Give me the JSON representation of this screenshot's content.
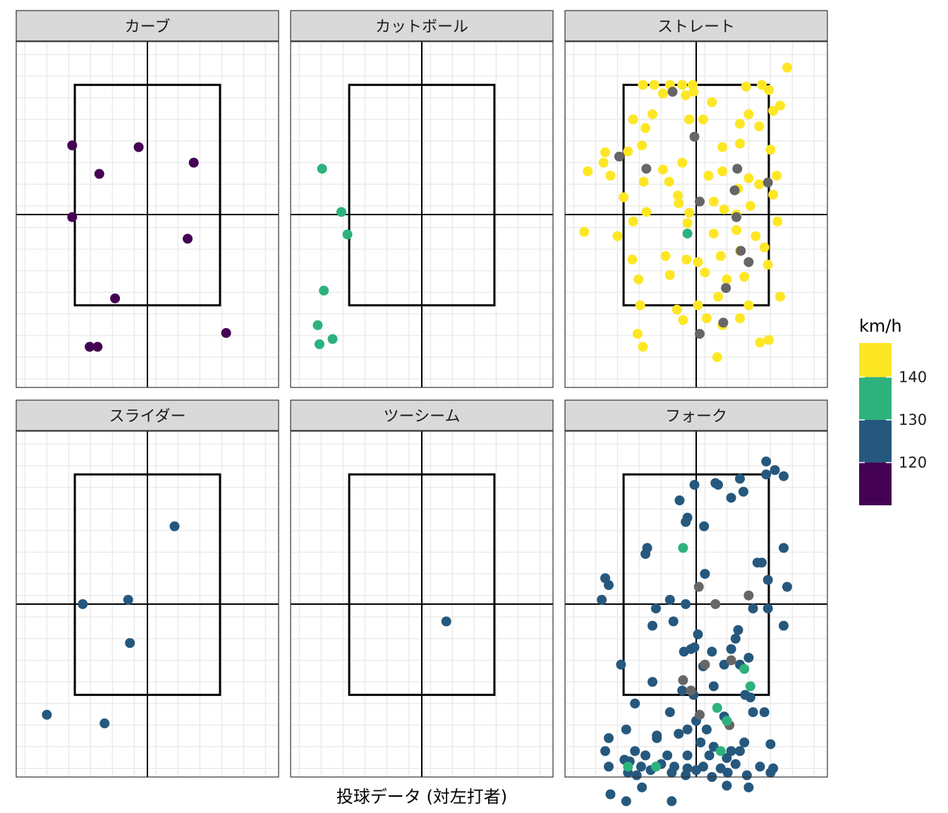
{
  "chart_data": {
    "type": "scatter",
    "facets_layout": "2x3",
    "xlabel": "投球データ (対左打者)",
    "ylabel": "",
    "xlim": [
      -1.5,
      1.5
    ],
    "ylim": [
      0,
      4
    ],
    "strike_zone": {
      "x": [
        -0.83,
        0.83
      ],
      "y": [
        0.95,
        3.5
      ]
    },
    "center_lines": {
      "x": 0,
      "y": 2.0
    },
    "grid": true,
    "legend": {
      "title": "km/h",
      "placement": "right",
      "ticks": [
        "120",
        "130",
        "140"
      ],
      "tick_values": [
        120,
        130,
        140
      ],
      "bands": [
        {
          "from": 140,
          "to": 148,
          "color": "#FDE725"
        },
        {
          "from": 130,
          "to": 140,
          "color": "#2DB27D"
        },
        {
          "from": 120,
          "to": 130,
          "color": "#26587E"
        },
        {
          "from": 110,
          "to": 120,
          "color": "#440154"
        }
      ],
      "range": [
        110,
        148
      ]
    },
    "na_color": "#666666",
    "facets": [
      {
        "name": "カーブ",
        "color": "#440154",
        "points": [
          [
            -0.86,
            2.8
          ],
          [
            -0.1,
            2.78
          ],
          [
            -0.55,
            2.47
          ],
          [
            0.53,
            2.6
          ],
          [
            -0.86,
            1.97
          ],
          [
            0.46,
            1.72
          ],
          [
            -0.37,
            1.03
          ],
          [
            -0.66,
            0.47
          ],
          [
            -0.57,
            0.47
          ],
          [
            0.9,
            0.63
          ]
        ]
      },
      {
        "name": "カットボール",
        "color": "#2DB27D",
        "points": [
          [
            -1.14,
            2.53
          ],
          [
            -0.92,
            2.03
          ],
          [
            -0.85,
            1.77
          ],
          [
            -1.12,
            1.12
          ],
          [
            -1.19,
            0.72
          ],
          [
            -1.17,
            0.5
          ],
          [
            -1.02,
            0.56
          ]
        ]
      },
      {
        "name": "ストレート",
        "color": "#FDE725",
        "points": [
          [
            1.04,
            3.7
          ],
          [
            -0.61,
            3.5
          ],
          [
            -0.48,
            3.5
          ],
          [
            -0.3,
            3.5
          ],
          [
            -0.16,
            3.5
          ],
          [
            -0.04,
            3.5
          ],
          [
            0.57,
            3.48
          ],
          [
            0.75,
            3.5
          ],
          [
            0.83,
            3.44
          ],
          [
            -0.38,
            3.4
          ],
          [
            -0.12,
            3.38
          ],
          [
            -0.03,
            3.42
          ],
          [
            0.18,
            3.3
          ],
          [
            0.96,
            3.26
          ],
          [
            0.88,
            3.2
          ],
          [
            0.6,
            3.16
          ],
          [
            -0.72,
            3.1
          ],
          [
            -0.58,
            3.0
          ],
          [
            -0.5,
            3.16
          ],
          [
            -0.08,
            3.1
          ],
          [
            0.08,
            3.1
          ],
          [
            0.5,
            3.05
          ],
          [
            0.72,
            3.02
          ],
          [
            -1.04,
            2.72
          ],
          [
            -1.06,
            2.6
          ],
          [
            -0.78,
            2.73
          ],
          [
            -0.62,
            2.8
          ],
          [
            -0.38,
            2.52
          ],
          [
            -0.16,
            2.6
          ],
          [
            0.3,
            2.78
          ],
          [
            0.5,
            2.82
          ],
          [
            0.85,
            2.75
          ],
          [
            -1.24,
            2.5
          ],
          [
            -0.98,
            2.45
          ],
          [
            -0.6,
            2.38
          ],
          [
            -0.31,
            2.38
          ],
          [
            -0.21,
            2.22
          ],
          [
            0.14,
            2.45
          ],
          [
            0.3,
            2.5
          ],
          [
            0.48,
            2.3
          ],
          [
            0.6,
            2.42
          ],
          [
            0.72,
            2.35
          ],
          [
            0.92,
            2.45
          ],
          [
            -0.83,
            2.2
          ],
          [
            -0.57,
            2.03
          ],
          [
            -0.2,
            2.13
          ],
          [
            -0.08,
            2.02
          ],
          [
            0.2,
            2.15
          ],
          [
            0.32,
            2.06
          ],
          [
            0.46,
            2.0
          ],
          [
            0.62,
            2.1
          ],
          [
            0.88,
            2.23
          ],
          [
            -1.28,
            1.8
          ],
          [
            -0.9,
            1.75
          ],
          [
            -0.72,
            1.92
          ],
          [
            -0.1,
            1.9
          ],
          [
            0.2,
            1.78
          ],
          [
            0.46,
            1.82
          ],
          [
            0.68,
            1.75
          ],
          [
            0.93,
            1.92
          ],
          [
            -0.73,
            1.48
          ],
          [
            -0.35,
            1.52
          ],
          [
            -0.11,
            1.48
          ],
          [
            0.02,
            1.45
          ],
          [
            0.28,
            1.52
          ],
          [
            0.5,
            1.58
          ],
          [
            0.78,
            1.62
          ],
          [
            -0.66,
            1.25
          ],
          [
            -0.3,
            1.3
          ],
          [
            0.1,
            1.33
          ],
          [
            0.35,
            1.25
          ],
          [
            0.55,
            1.28
          ],
          [
            0.82,
            1.42
          ],
          [
            -0.64,
            0.95
          ],
          [
            -0.22,
            0.9
          ],
          [
            0.02,
            0.95
          ],
          [
            0.25,
            1.05
          ],
          [
            0.6,
            0.95
          ],
          [
            0.96,
            1.05
          ],
          [
            -0.67,
            0.62
          ],
          [
            -0.61,
            0.47
          ],
          [
            -0.15,
            0.78
          ],
          [
            0.12,
            0.8
          ],
          [
            0.3,
            0.72
          ],
          [
            0.5,
            0.8
          ],
          [
            0.73,
            0.52
          ],
          [
            0.83,
            0.55
          ],
          [
            0.24,
            0.35
          ]
        ],
        "na_points": [
          [
            -0.27,
            3.42
          ],
          [
            -0.02,
            2.9
          ],
          [
            -0.88,
            2.67
          ],
          [
            -0.57,
            2.53
          ],
          [
            0.47,
            2.53
          ],
          [
            0.82,
            2.37
          ],
          [
            0.44,
            2.28
          ],
          [
            0.04,
            2.15
          ],
          [
            0.46,
            1.97
          ],
          [
            0.51,
            1.58
          ],
          [
            0.6,
            1.45
          ],
          [
            0.34,
            1.15
          ],
          [
            0.31,
            0.75
          ],
          [
            0.04,
            0.62
          ]
        ],
        "green_points": [
          [
            -0.1,
            1.78
          ]
        ]
      },
      {
        "name": "スライダー",
        "color": "#26587E",
        "points": [
          [
            0.31,
            2.9
          ],
          [
            -0.74,
            2.0
          ],
          [
            -0.22,
            2.05
          ],
          [
            -0.2,
            1.55
          ],
          [
            -1.15,
            0.72
          ],
          [
            -0.49,
            0.62
          ]
        ]
      },
      {
        "name": "ツーシーム",
        "color": "#26587E",
        "points": [
          [
            0.28,
            1.8
          ]
        ]
      },
      {
        "name": "フォーク",
        "color": "#26587E",
        "points": [
          [
            0.8,
            3.65
          ],
          [
            0.9,
            3.55
          ],
          [
            1.0,
            3.48
          ],
          [
            0.8,
            3.5
          ],
          [
            0.22,
            3.4
          ],
          [
            0.25,
            3.38
          ],
          [
            0.5,
            3.45
          ],
          [
            -0.19,
            3.2
          ],
          [
            -0.02,
            3.38
          ],
          [
            0.4,
            3.23
          ],
          [
            0.54,
            3.3
          ],
          [
            -0.1,
            3.0
          ],
          [
            -0.12,
            2.95
          ],
          [
            0.09,
            2.9
          ],
          [
            -0.56,
            2.65
          ],
          [
            0.7,
            2.48
          ],
          [
            -0.58,
            2.58
          ],
          [
            1.0,
            2.65
          ],
          [
            0.75,
            2.48
          ],
          [
            0.1,
            2.35
          ],
          [
            0.82,
            2.28
          ],
          [
            1.04,
            2.2
          ],
          [
            -1.04,
            2.3
          ],
          [
            -1.0,
            2.22
          ],
          [
            -1.08,
            2.05
          ],
          [
            -0.3,
            2.05
          ],
          [
            -0.46,
            1.95
          ],
          [
            -0.5,
            1.75
          ],
          [
            -0.26,
            1.8
          ],
          [
            -0.12,
            2.0
          ],
          [
            0.48,
            1.7
          ],
          [
            0.65,
            1.95
          ],
          [
            0.82,
            1.95
          ],
          [
            1.0,
            1.75
          ],
          [
            0.02,
            1.65
          ],
          [
            0.45,
            1.6
          ],
          [
            -0.06,
            1.48
          ],
          [
            -0.14,
            1.45
          ],
          [
            -0.02,
            1.5
          ],
          [
            0.18,
            1.45
          ],
          [
            0.32,
            1.3
          ],
          [
            0.5,
            1.3
          ],
          [
            0.4,
            1.48
          ],
          [
            0.6,
            1.38
          ],
          [
            -0.86,
            1.3
          ],
          [
            -0.5,
            1.1
          ],
          [
            -0.16,
            1.0
          ],
          [
            -0.03,
            0.95
          ],
          [
            0.08,
            1.28
          ],
          [
            0.2,
            1.05
          ],
          [
            0.56,
            0.95
          ],
          [
            0.62,
            0.92
          ],
          [
            -0.7,
            0.85
          ],
          [
            -0.3,
            0.75
          ],
          [
            -0.1,
            0.55
          ],
          [
            0.0,
            0.65
          ],
          [
            0.32,
            0.7
          ],
          [
            0.65,
            0.75
          ],
          [
            0.78,
            0.75
          ],
          [
            -0.8,
            0.55
          ],
          [
            -0.45,
            0.48
          ],
          [
            -0.2,
            0.5
          ],
          [
            0.05,
            0.4
          ],
          [
            0.2,
            0.35
          ],
          [
            0.4,
            0.3
          ],
          [
            0.55,
            0.4
          ],
          [
            0.85,
            0.38
          ],
          [
            -1.0,
            0.45
          ],
          [
            -0.7,
            0.3
          ],
          [
            -0.58,
            0.25
          ],
          [
            -0.33,
            0.25
          ],
          [
            -0.1,
            0.25
          ],
          [
            0.15,
            0.25
          ],
          [
            0.35,
            0.22
          ],
          [
            0.5,
            0.3
          ],
          [
            -0.82,
            0.2
          ],
          [
            -0.76,
            0.18
          ],
          [
            -0.63,
            0.12
          ],
          [
            -0.4,
            0.15
          ],
          [
            -0.25,
            0.12
          ],
          [
            -0.1,
            0.1
          ],
          [
            0.08,
            0.12
          ],
          [
            0.28,
            0.1
          ],
          [
            0.45,
            0.15
          ],
          [
            0.73,
            0.12
          ],
          [
            0.88,
            0.1
          ],
          [
            -0.78,
            0.05
          ],
          [
            -0.68,
            0.02
          ],
          [
            -0.52,
            0.08
          ],
          [
            -0.28,
            0.05
          ],
          [
            -0.12,
            0.02
          ],
          [
            0.0,
            0.08
          ],
          [
            0.18,
            0.0
          ],
          [
            0.36,
            0.05
          ],
          [
            0.58,
            0.02
          ],
          [
            0.85,
            0.05
          ],
          [
            -1.04,
            0.3
          ],
          [
            -1.0,
            0.12
          ],
          [
            -0.98,
            -0.2
          ],
          [
            -0.8,
            -0.28
          ],
          [
            -0.62,
            -0.12
          ],
          [
            -0.28,
            -0.28
          ],
          [
            0.35,
            -0.1
          ],
          [
            0.6,
            -0.12
          ],
          [
            -0.45,
            0.45
          ],
          [
            0.12,
            0.55
          ]
        ],
        "na_points": [
          [
            0.03,
            2.2
          ],
          [
            0.22,
            2.0
          ],
          [
            0.6,
            2.1
          ],
          [
            0.1,
            1.3
          ],
          [
            0.4,
            1.35
          ],
          [
            -0.15,
            1.12
          ],
          [
            -0.06,
            1.0
          ],
          [
            0.04,
            0.72
          ],
          [
            0.38,
            0.6
          ]
        ],
        "green_points": [
          [
            -0.15,
            2.65
          ],
          [
            0.55,
            1.25
          ],
          [
            0.62,
            1.05
          ],
          [
            0.24,
            0.8
          ],
          [
            0.35,
            0.65
          ],
          [
            -0.78,
            0.12
          ],
          [
            -0.46,
            0.12
          ],
          [
            0.28,
            0.3
          ]
        ]
      }
    ]
  }
}
